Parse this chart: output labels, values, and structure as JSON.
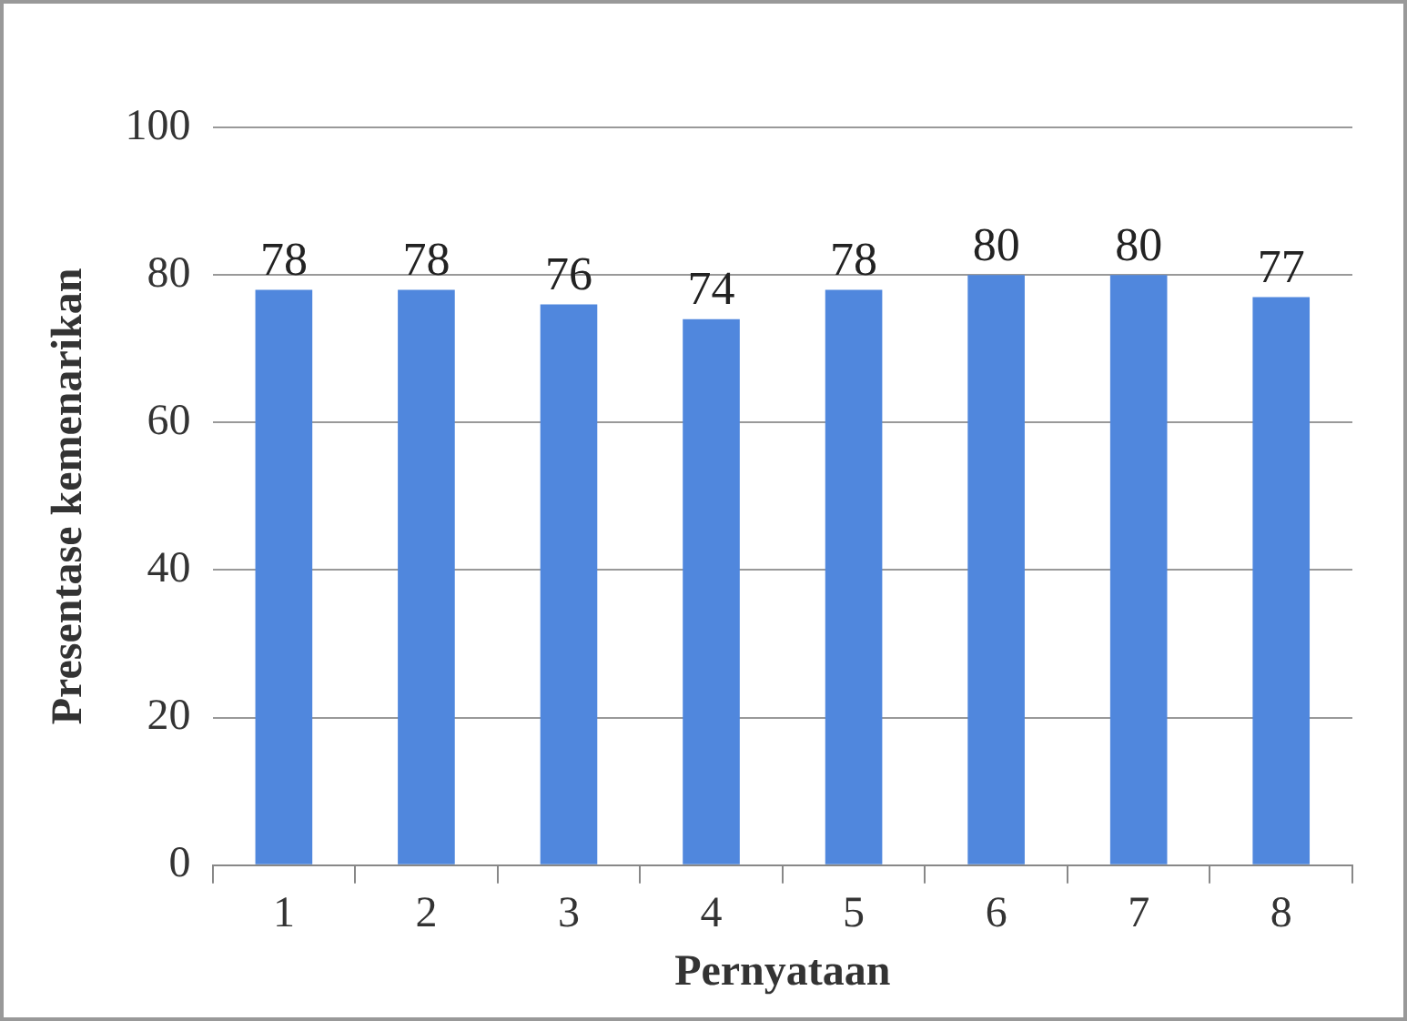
{
  "chart_data": {
    "type": "bar",
    "xlabel": "Pernyataan",
    "ylabel": "Presentase kemenarikan",
    "categories": [
      "1",
      "2",
      "3",
      "4",
      "5",
      "6",
      "7",
      "8"
    ],
    "values": [
      78,
      78,
      76,
      74,
      78,
      80,
      80,
      77
    ],
    "color": "#5087dd",
    "ylim": [
      0,
      100
    ],
    "yticks": [
      0,
      20,
      40,
      60,
      80,
      100
    ],
    "grid": "y",
    "data_labels": true,
    "legend": false
  }
}
